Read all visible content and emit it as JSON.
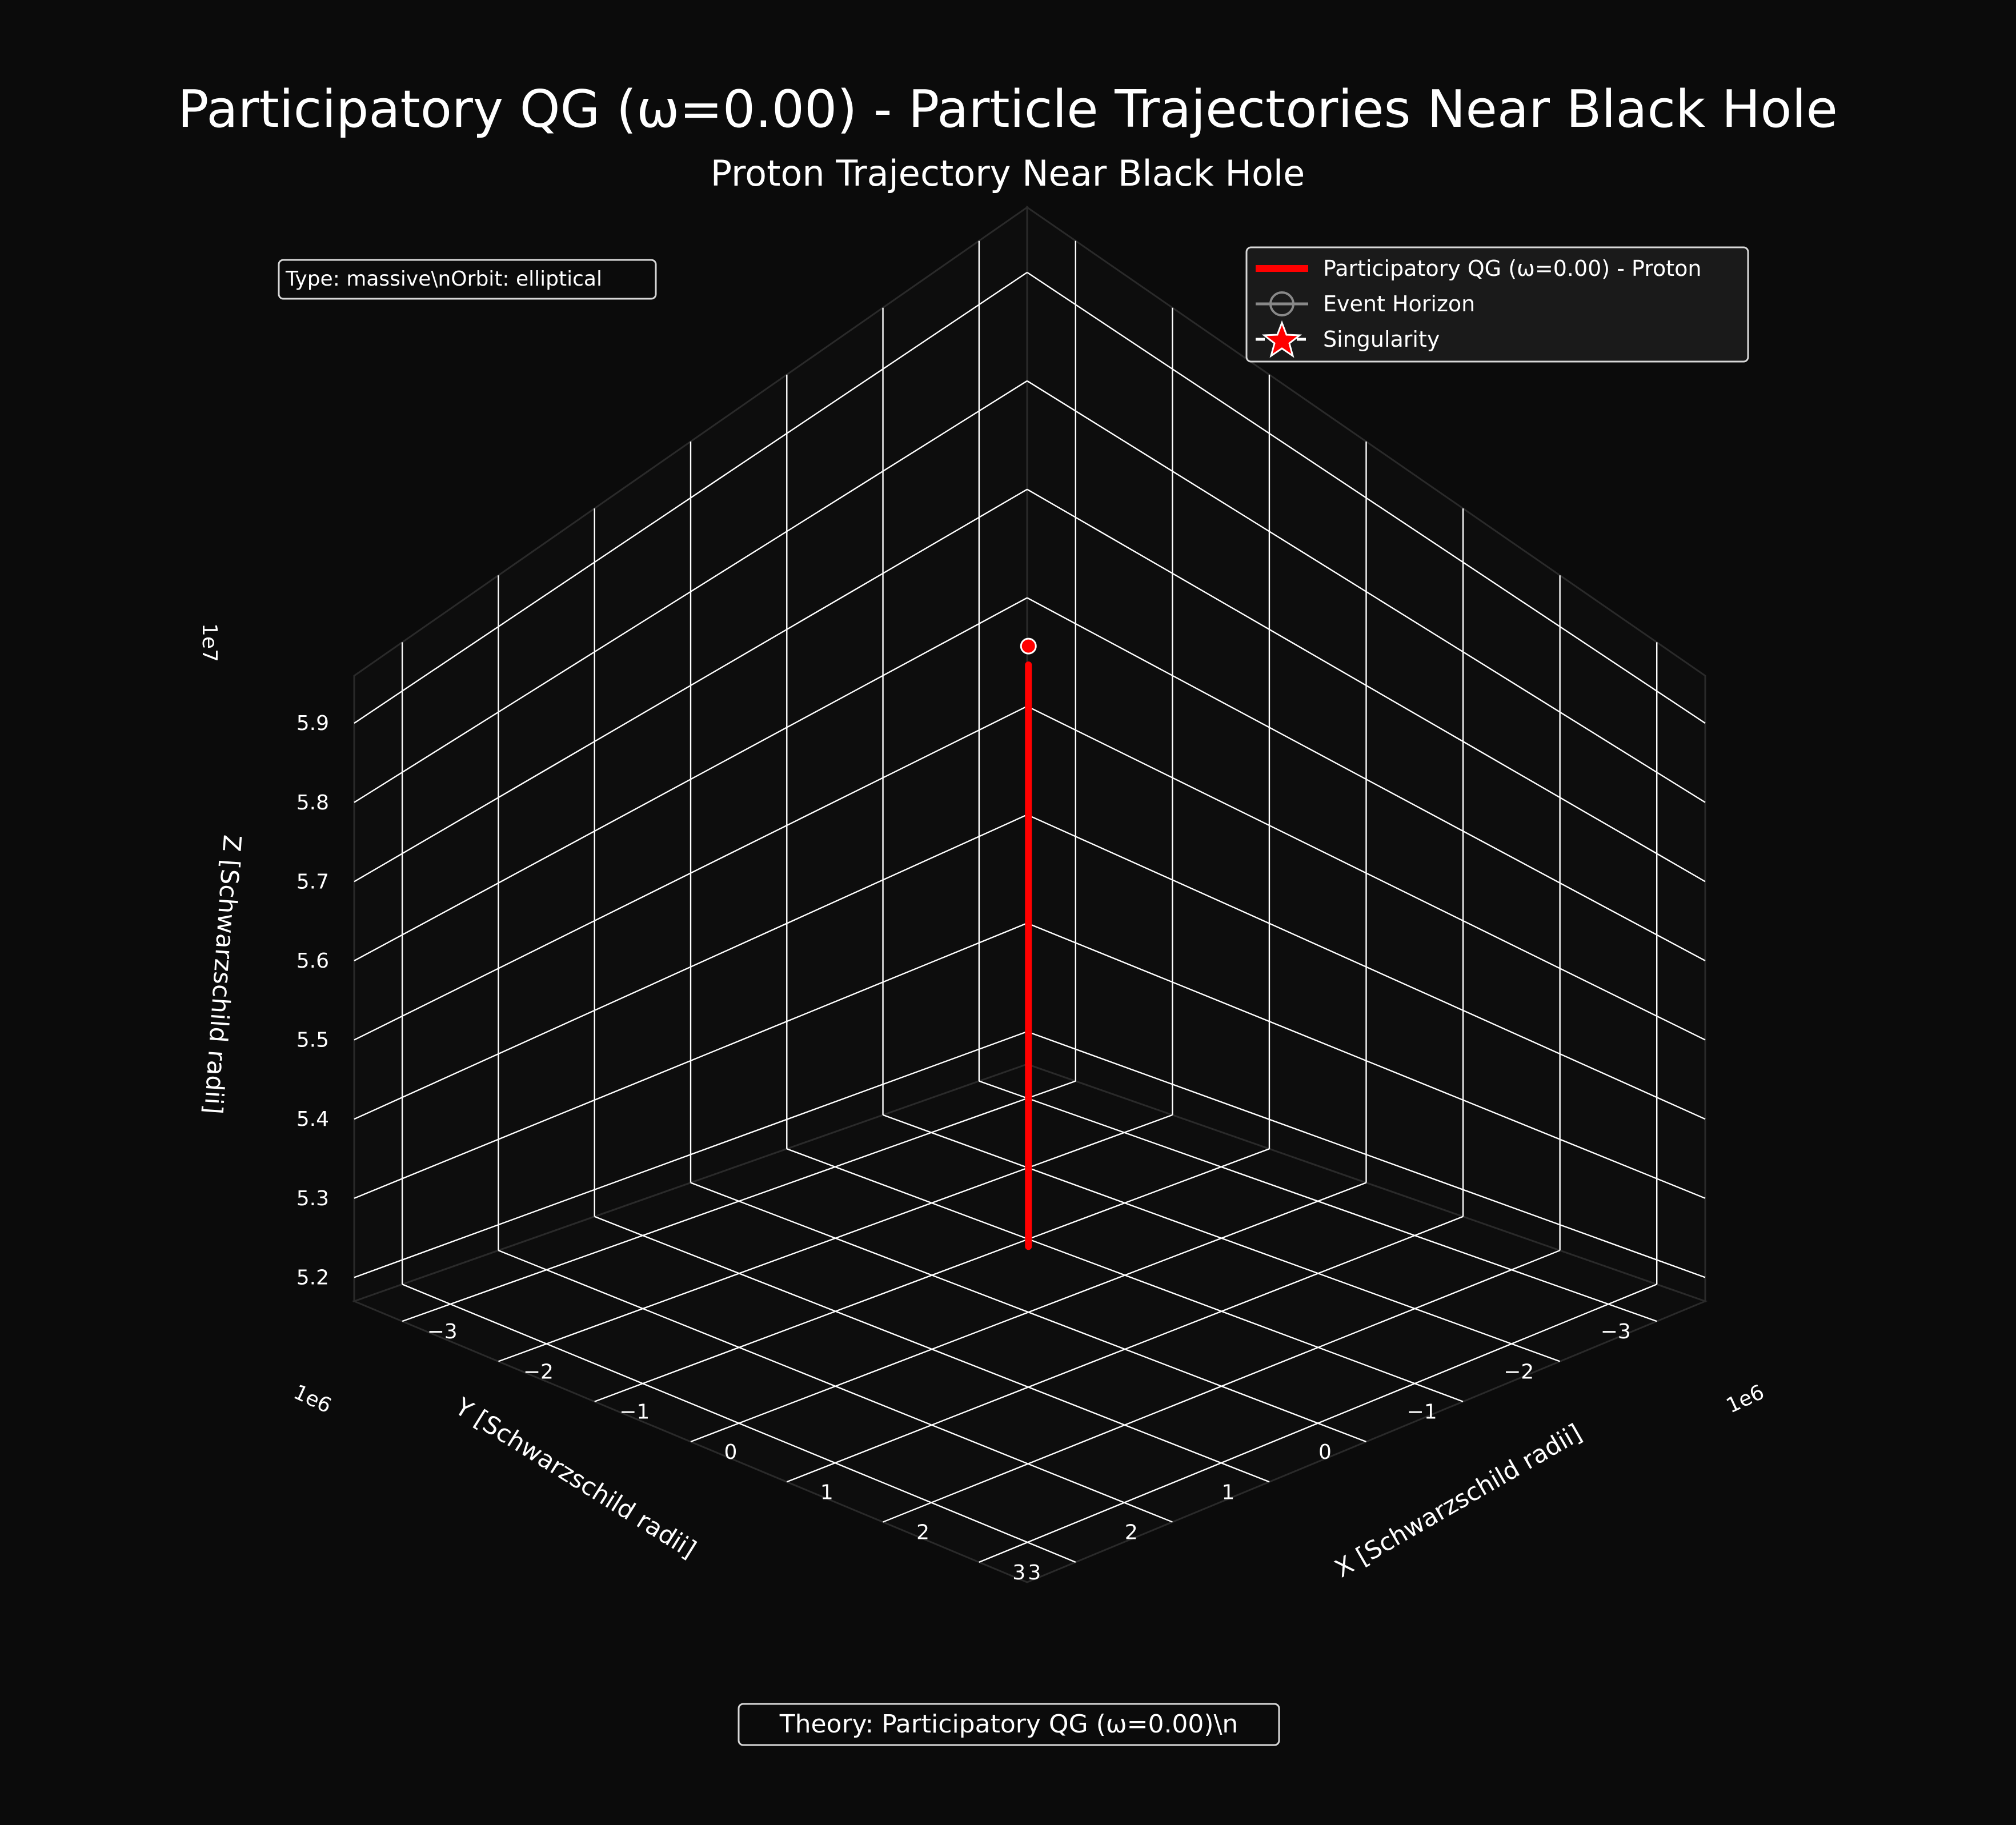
{
  "figure": {
    "suptitle": "Participatory QG (ω=0.00) - Particle Trajectories Near Black Hole",
    "title": "Proton Trajectory Near Black Hole",
    "info_box": "Type: massive\\nOrbit: elliptical",
    "footer_box": "Theory: Participatory QG (ω=0.00)\\n"
  },
  "colors": {
    "background": "#0b0b0b",
    "grid": "#ffffff",
    "trajectory": "#ff0000",
    "legend_bg": "#1a1a1a"
  },
  "chart_data": {
    "type": "line",
    "projection": "3d",
    "view": "elevated, origin corner toward the viewer",
    "grid": true,
    "legend_position": "top-right",
    "legend": [
      {
        "label": "Participatory QG (ω=0.00) - Proton",
        "marker": "line",
        "color": "#ff0000"
      },
      {
        "label": "Event Horizon",
        "marker": "circle",
        "color": "#888888"
      },
      {
        "label": "Singularity",
        "marker": "star",
        "color": "#ff0000"
      }
    ],
    "axes": {
      "x": {
        "label": "X [Schwarzschild radii]",
        "offset_text": "1e6",
        "lim": [
          -3.5,
          3.5
        ],
        "ticks": [
          -3,
          -2,
          -1,
          0,
          1,
          2,
          3
        ],
        "tick_labels": [
          "−3",
          "−2",
          "−1",
          "0",
          "1",
          "2",
          "3"
        ]
      },
      "y": {
        "label": "Y [Schwarzschild radii]",
        "offset_text": "1e6",
        "lim": [
          -3.5,
          3.5
        ],
        "ticks": [
          -3,
          -2,
          -1,
          0,
          1,
          2,
          3
        ],
        "tick_labels": [
          "−3",
          "−2",
          "−1",
          "0",
          "1",
          "2",
          "3"
        ]
      },
      "z": {
        "label": "Z [Schwarzschild radii]",
        "offset_text": "1e7",
        "lim": [
          5.17,
          5.96
        ],
        "ticks": [
          5.2,
          5.3,
          5.4,
          5.5,
          5.6,
          5.7,
          5.8,
          5.9
        ],
        "tick_labels": [
          "5.2",
          "5.3",
          "5.4",
          "5.5",
          "5.6",
          "5.7",
          "5.8",
          "5.9"
        ]
      }
    },
    "series": [
      {
        "name": "Participatory QG (ω=0.00) - Proton",
        "x": [
          0,
          0
        ],
        "y": [
          0,
          0
        ],
        "z": [
          5.24,
          5.86
        ],
        "end_marker": {
          "x": 0,
          "y": 0,
          "z": 5.88
        }
      }
    ]
  }
}
